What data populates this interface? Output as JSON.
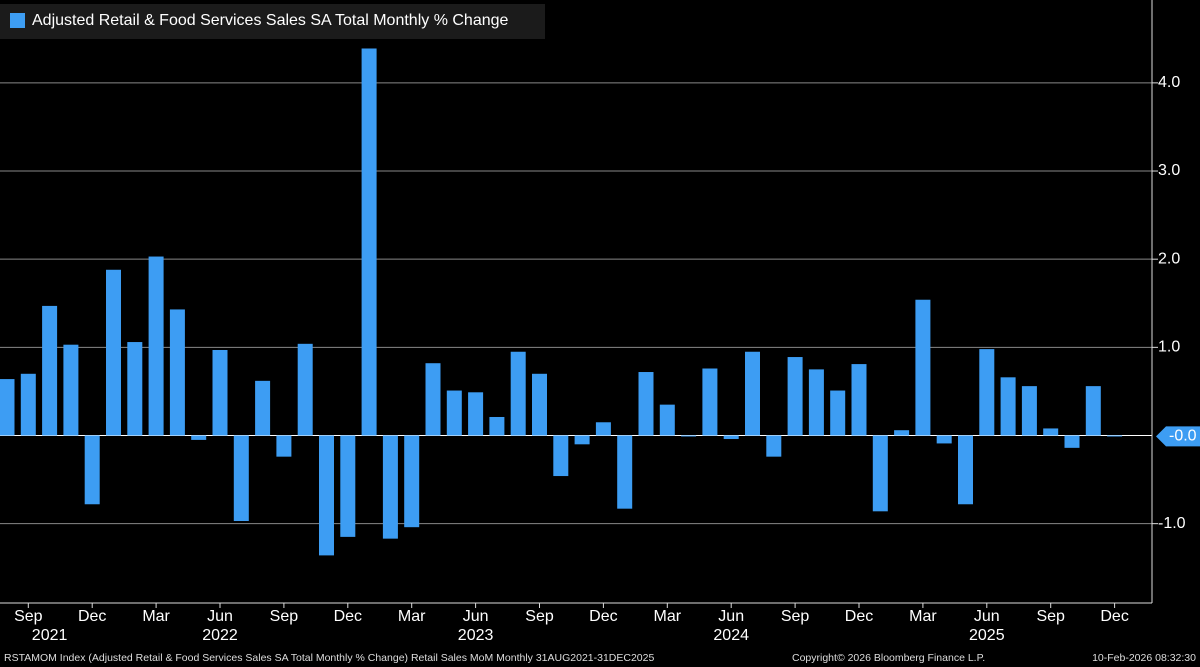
{
  "chart_data": {
    "type": "bar",
    "legend": "Adjusted Retail & Food Services Sales SA Total Monthly % Change",
    "color": "#3d9df3",
    "categories": [
      null,
      "Sep",
      null,
      null,
      "Dec",
      null,
      null,
      "Mar",
      null,
      null,
      "Jun",
      null,
      null,
      "Sep",
      null,
      null,
      "Dec",
      null,
      null,
      "Mar",
      null,
      null,
      "Jun",
      null,
      null,
      "Sep",
      null,
      null,
      "Dec",
      null,
      null,
      "Mar",
      null,
      null,
      "Jun",
      null,
      null,
      "Sep",
      null,
      null,
      "Dec",
      null,
      null,
      "Mar",
      null,
      null,
      "Jun",
      null,
      null,
      "Sep",
      null,
      null,
      "Dec"
    ],
    "years": [
      null,
      null,
      "2021",
      null,
      null,
      null,
      null,
      null,
      null,
      null,
      "2022",
      null,
      null,
      null,
      null,
      null,
      null,
      null,
      null,
      null,
      null,
      null,
      "2023",
      null,
      null,
      null,
      null,
      null,
      null,
      null,
      null,
      null,
      null,
      null,
      "2024",
      null,
      null,
      null,
      null,
      null,
      null,
      null,
      null,
      null,
      null,
      null,
      "2025",
      null,
      null,
      null,
      null,
      null,
      null
    ],
    "values": [
      0.64,
      0.7,
      1.47,
      1.03,
      -0.78,
      1.88,
      1.06,
      2.03,
      1.43,
      -0.05,
      0.97,
      -0.97,
      0.62,
      -0.24,
      1.04,
      -1.36,
      -1.15,
      4.39,
      -1.17,
      -1.04,
      0.82,
      0.51,
      0.49,
      0.21,
      0.95,
      0.7,
      -0.46,
      -0.1,
      0.15,
      -0.83,
      0.72,
      0.35,
      -0.01,
      0.76,
      -0.04,
      0.95,
      -0.24,
      0.89,
      0.75,
      0.51,
      0.81,
      -0.86,
      0.06,
      1.54,
      -0.09,
      -0.78,
      0.98,
      0.66,
      0.56,
      0.08,
      -0.14,
      0.56,
      -0.01
    ],
    "ylim": [
      -1.9,
      4.94
    ],
    "yticks": [
      {
        "value": -1,
        "label": "-1.0"
      },
      {
        "value": 1,
        "label": "1.0"
      },
      {
        "value": 2,
        "label": "2.0"
      },
      {
        "value": 3,
        "label": "3.0"
      },
      {
        "value": 4,
        "label": "4.0"
      }
    ],
    "grid": true,
    "last_value_label": "-0.0",
    "footer_left": "RSTAMOM Index (Adjusted Retail & Food Services Sales SA Total Monthly % Change) Retail Sales MoM Monthly 31AUG2021-31DEC2025",
    "footer_center": "Copyright© 2026 Bloomberg Finance L.P.",
    "footer_right": "10-Feb-2026 08:32:30"
  }
}
